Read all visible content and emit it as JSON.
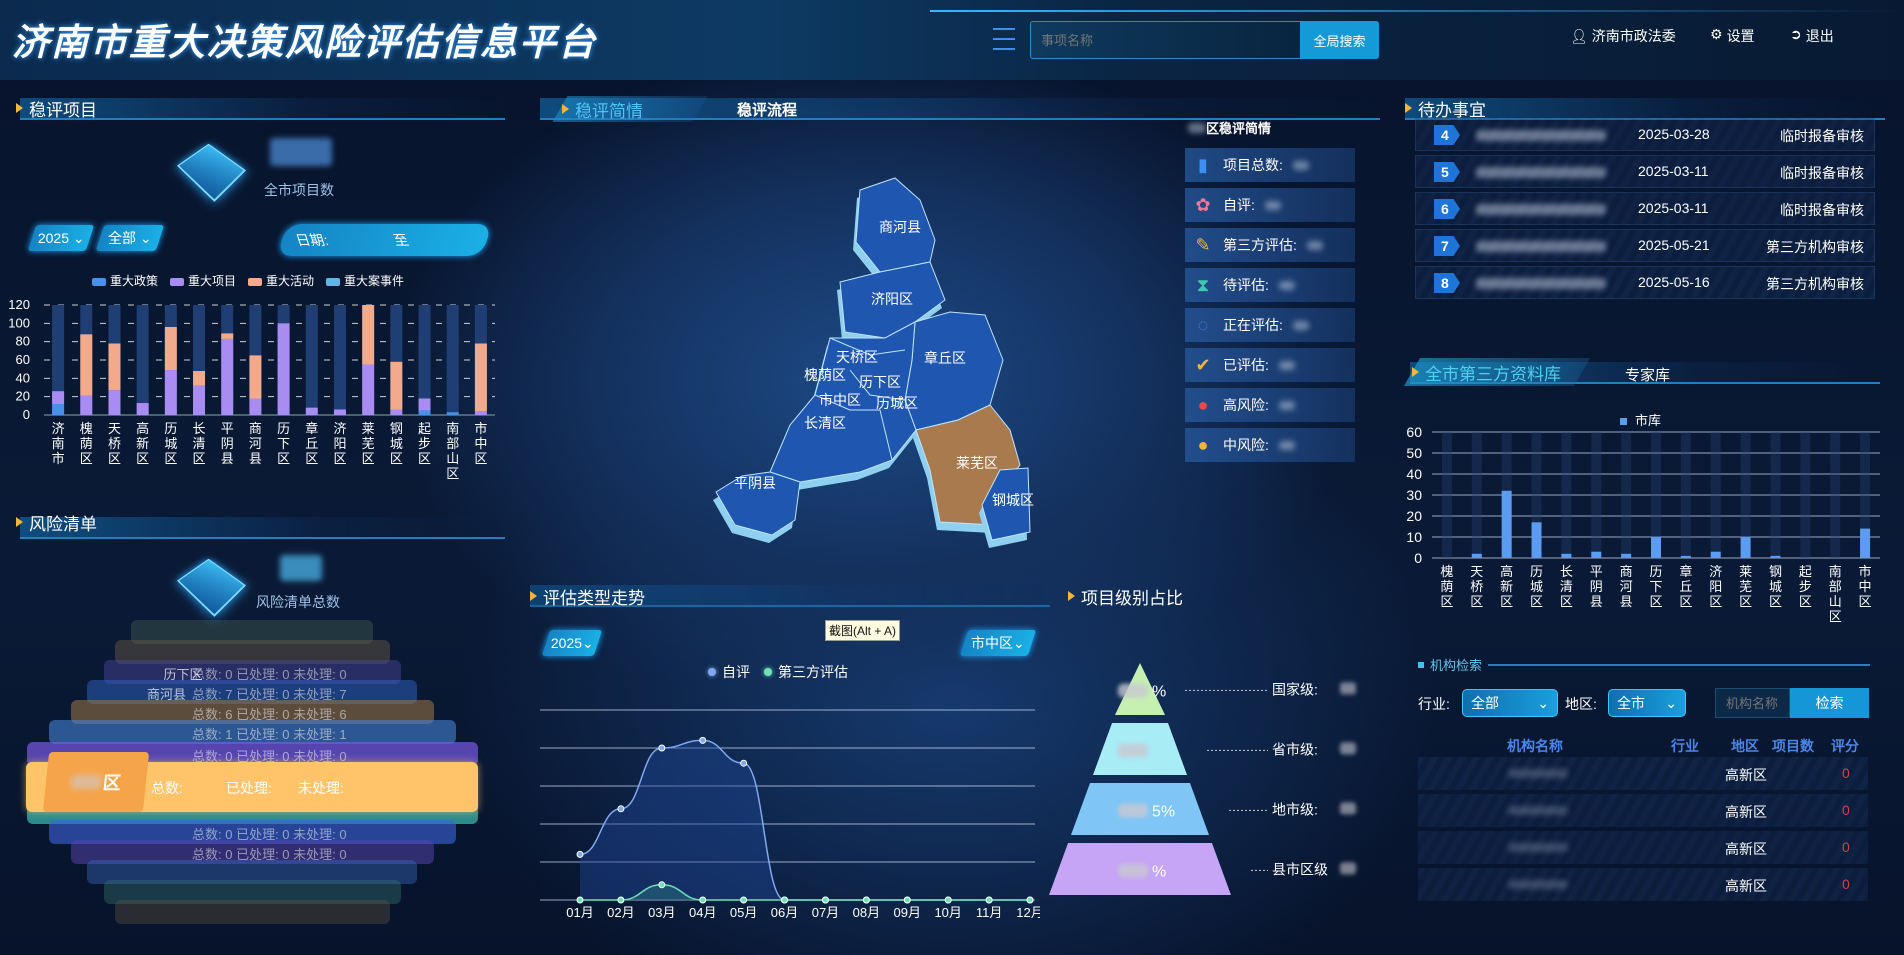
{
  "header": {
    "title": "济南市重大决策风险评估信息平台",
    "search_placeholder": "事项名称",
    "search_button": "全局搜索",
    "user": "济南市政法委",
    "settings": "设置",
    "logout": "退出"
  },
  "projects": {
    "title": "稳评项目",
    "total_label": "全市项目数",
    "year": "2025",
    "scope": "全部",
    "date_label": "日期:",
    "date_sep": "至"
  },
  "risk": {
    "title": "风险清单",
    "total_label": "风险清单总数",
    "active_card": {
      "region_suffix": "区",
      "total_label": "总数:",
      "done_label": "已处理:",
      "pending_label": "未处理:"
    },
    "cards": [
      {
        "region": "历下区",
        "text": "总数: 0  已处理: 0  未处理: 0"
      },
      {
        "region": "商河县",
        "text": "总数: 7  已处理: 0  未处理: 7"
      },
      {
        "region": "",
        "text": "总数: 6  已处理: 0  未处理: 6"
      },
      {
        "region": "",
        "text": "总数: 1  已处理: 0  未处理: 1"
      },
      {
        "region": "",
        "text": "总数: 0  已处理: 0  未处理: 0"
      },
      {
        "region": "",
        "text": "总数: 0  已处理: 0  未处理: 0"
      },
      {
        "region": "",
        "text": "总数: 0  已处理: 0  未处理: 0"
      }
    ]
  },
  "center": {
    "tabs": [
      {
        "label": "稳评简情",
        "active": true
      },
      {
        "label": "稳评流程",
        "active": false
      }
    ],
    "map_regions": [
      {
        "name": "商河县"
      },
      {
        "name": "济阳区"
      },
      {
        "name": "天桥区"
      },
      {
        "name": "槐荫区"
      },
      {
        "name": "历下区"
      },
      {
        "name": "市中区"
      },
      {
        "name": "历城区"
      },
      {
        "name": "长清区"
      },
      {
        "name": "章丘区"
      },
      {
        "name": "莱芜区",
        "highlight": true
      },
      {
        "name": "钢城区"
      },
      {
        "name": "平阴县"
      }
    ],
    "highlight_color": "#a97a4e",
    "info": {
      "title": "区稳评简情",
      "items": [
        {
          "label": "项目总数:",
          "icon": "bar-chart-icon"
        },
        {
          "label": "自评:",
          "icon": "lotus-icon"
        },
        {
          "label": "第三方评估:",
          "icon": "note-edit-icon"
        },
        {
          "label": "待评估:",
          "icon": "hourglass-icon"
        },
        {
          "label": "正在评估:",
          "icon": "loading-icon"
        },
        {
          "label": "已评估:",
          "icon": "check-circle-icon"
        },
        {
          "label": "高风险:",
          "icon": "pin-red-icon"
        },
        {
          "label": "中风险:",
          "icon": "pin-orange-icon"
        }
      ]
    }
  },
  "trend": {
    "title": "评估类型走势",
    "year": "2025",
    "district": "市中区",
    "tooltip": "截图(Alt + A)"
  },
  "level": {
    "title": "项目级别占比",
    "levels": [
      {
        "label": "国家级:",
        "pct": "%",
        "color": "#c6efb2"
      },
      {
        "label": "省市级:",
        "pct": "",
        "color": "#a8ecf6"
      },
      {
        "label": "地市级:",
        "pct": "5%",
        "color": "#7fc6f6"
      },
      {
        "label": "县市区级",
        "pct": "%",
        "color": "#c6a4f6"
      }
    ]
  },
  "todo": {
    "title": "待办事宜",
    "rows": [
      {
        "no": "4",
        "date": "2025-03-28",
        "type": "临时报备审核"
      },
      {
        "no": "5",
        "date": "2025-03-11",
        "type": "临时报备审核"
      },
      {
        "no": "6",
        "date": "2025-03-11",
        "type": "临时报备审核"
      },
      {
        "no": "7",
        "date": "2025-05-21",
        "type": "第三方机构审核"
      },
      {
        "no": "8",
        "date": "2025-05-16",
        "type": "第三方机构审核"
      }
    ]
  },
  "library": {
    "tabs": [
      {
        "label": "全市第三方资料库",
        "active": true
      },
      {
        "label": "专家库",
        "active": false
      }
    ]
  },
  "org_search": {
    "title": "机构检索",
    "industry_label": "行业:",
    "industry": "全部",
    "region_label": "地区:",
    "region": "全市",
    "name_placeholder": "机构名称",
    "button": "检索",
    "columns": [
      "机构名称",
      "行业",
      "地区",
      "项目数",
      "评分"
    ],
    "rows": [
      {
        "region": "高新区",
        "score": "0"
      },
      {
        "region": "高新区",
        "score": "0"
      },
      {
        "region": "高新区",
        "score": "0"
      },
      {
        "region": "高新区",
        "score": "0"
      }
    ]
  },
  "chart_data": [
    {
      "type": "bar",
      "stacked": true,
      "categories": [
        "济南市",
        "槐荫区",
        "天桥区",
        "高新区",
        "历城区",
        "长清区",
        "平阴县",
        "商河县",
        "历下区",
        "章丘区",
        "济阳区",
        "莱芜区",
        "钢城区",
        "起步区",
        "南部山区",
        "市中区"
      ],
      "series": [
        {
          "name": "重大政策",
          "color": "#4a8fe8",
          "values": [
            12,
            0,
            0,
            0,
            0,
            0,
            0,
            0,
            0,
            0,
            0,
            0,
            0,
            5,
            3,
            0
          ]
        },
        {
          "name": "重大项目",
          "color": "#a98cf2",
          "values": [
            14,
            21,
            27,
            13,
            49,
            32,
            83,
            18,
            100,
            8,
            6,
            55,
            6,
            13,
            0,
            4
          ]
        },
        {
          "name": "重大活动",
          "color": "#f2aa8c",
          "values": [
            0,
            67,
            51,
            0,
            47,
            16,
            6,
            47,
            0,
            0,
            0,
            65,
            52,
            0,
            0,
            74
          ]
        },
        {
          "name": "重大案事件",
          "color": "#62b4e6",
          "values": [
            0,
            0,
            0,
            0,
            0,
            0,
            0,
            0,
            0,
            0,
            0,
            0,
            0,
            0,
            0,
            0
          ]
        }
      ],
      "ylim": [
        0,
        120
      ],
      "yticks": [
        0,
        20,
        40,
        60,
        80,
        100,
        120
      ],
      "grid": true,
      "legend": "top"
    },
    {
      "type": "line",
      "categories": [
        "01月",
        "02月",
        "03月",
        "04月",
        "05月",
        "06月",
        "07月",
        "08月",
        "09月",
        "10月",
        "11月",
        "12月"
      ],
      "series": [
        {
          "name": "自评",
          "color": "#7fa8f0",
          "values": [
            1.2,
            2.4,
            4.0,
            4.2,
            3.6,
            0,
            0,
            0,
            0,
            0,
            0,
            0
          ]
        },
        {
          "name": "第三方评估",
          "color": "#6fe0b8",
          "values": [
            0,
            0,
            0.4,
            0,
            0,
            0,
            0,
            0,
            0,
            0,
            0,
            0
          ]
        }
      ],
      "ylim": [
        0,
        5
      ],
      "grid": true,
      "legend": "top"
    },
    {
      "type": "bar",
      "categories": [
        "槐荫区",
        "天桥区",
        "高新区",
        "历城区",
        "长清区",
        "平阴县",
        "商河县",
        "历下区",
        "章丘区",
        "济阳区",
        "莱芜区",
        "钢城区",
        "起步区",
        "南部山区",
        "市中区"
      ],
      "series": [
        {
          "name": "市库",
          "color": "#5b9cf0",
          "values": [
            0,
            2,
            32,
            17,
            2,
            3,
            2,
            10,
            1,
            3,
            10,
            1,
            0,
            0,
            14
          ]
        }
      ],
      "ylim": [
        0,
        60
      ],
      "yticks": [
        0,
        10,
        20,
        30,
        40,
        50,
        60
      ],
      "grid": true,
      "legend": "top"
    }
  ]
}
